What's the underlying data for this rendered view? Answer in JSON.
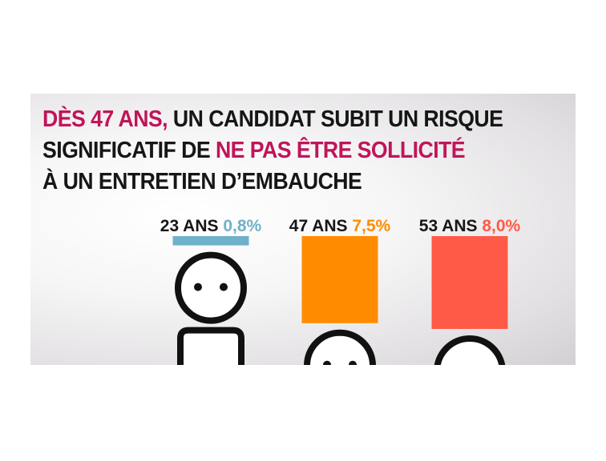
{
  "headline": {
    "line1_accent": "DÈS 47 ANS,",
    "line1_rest": " UN CANDIDAT SUBIT UN RISQUE",
    "line2_start": "SIGNIFICATIF DE ",
    "line2_accent": "NE PAS ÊTRE SOLLICITÉ",
    "line3": "À UN ENTRETIEN D’EMBAUCHE"
  },
  "colors": {
    "accent": "#c0155a",
    "text": "#161616"
  },
  "chart_data": {
    "type": "bar",
    "categories": [
      "23 ANS",
      "47 ANS",
      "53 ANS"
    ],
    "value_labels": [
      "0,8%",
      "7,5%",
      "8,0%"
    ],
    "values": [
      0.8,
      7.5,
      8.0
    ],
    "colors": [
      "#6fb1c8",
      "#ff8c00",
      "#ff5a47"
    ],
    "ylim": [
      0,
      8.0
    ],
    "grid": false,
    "figure_icon": "person-icon"
  }
}
